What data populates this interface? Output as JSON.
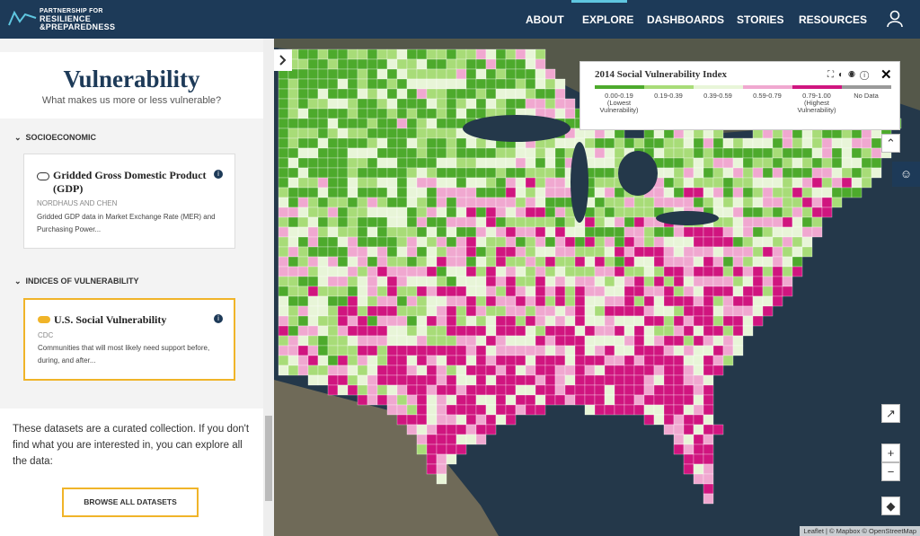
{
  "header": {
    "logo": [
      "PARTNERSHIP FOR",
      "RESILIENCE",
      "&PREPAREDNESS"
    ],
    "nav": [
      "ABOUT",
      "EXPLORE",
      "DASHBOARDS",
      "STORIES",
      "RESOURCES"
    ]
  },
  "sidebar": {
    "title": "Vulnerability",
    "subtitle": "What makes us more or less vulnerable?",
    "sections": [
      {
        "heading": "SOCIOECONOMIC",
        "card": {
          "title": "Gridded Gross Domestic Product (GDP)",
          "source": "NORDHAUS AND CHEN",
          "description": "Gridded GDP data in Market Exchange Rate (MER) and Purchasing Power..."
        }
      },
      {
        "heading": "INDICES OF VULNERABILITY",
        "card": {
          "title": "U.S. Social Vulnerability",
          "source": "CDC",
          "description": "Communities that will most likely need support before, during, and after..."
        }
      }
    ],
    "footer": "These datasets are a curated collection. If you don't find what you are interested in, you can explore all the data:",
    "button": "BROWSE ALL DATASETS"
  },
  "legend": {
    "title": "2014 Social Vulnerability Index",
    "items": [
      {
        "range": "0.00-0.19",
        "note": "(Lowest Vulnerability)",
        "color": "#4daa2c"
      },
      {
        "range": "0.19-0.39",
        "color": "#a8dc78"
      },
      {
        "range": "0.39-0.59",
        "color": "#e8f5d8"
      },
      {
        "range": "0.59-0.79",
        "color": "#f0a8d0"
      },
      {
        "range": "0.79-1.00",
        "note": "(Highest Vulnerability)",
        "color": "#d0157f"
      },
      {
        "range": "No Data",
        "color": "#9a9a9a"
      }
    ]
  },
  "attribution": "Leaflet | © Mapbox © OpenStreetMap"
}
